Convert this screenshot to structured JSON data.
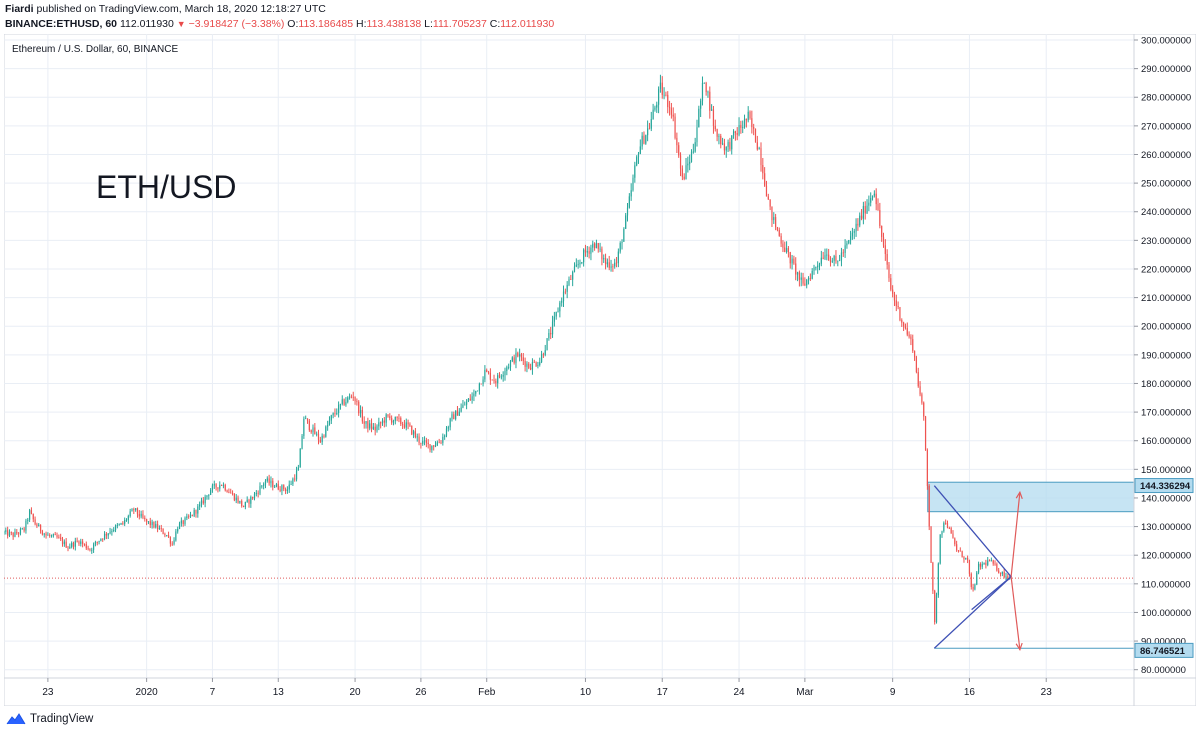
{
  "header": {
    "author": "Fiardi",
    "published_text": "published on TradingView.com, March 18, 2020 12:18:27 UTC",
    "symbol_line": "BINANCE:ETHUSD, 60",
    "last_price": "112.011930",
    "change_arrow": "▼",
    "change": "−3.918427 (−3.38%)",
    "open_label": "O:",
    "open_value": "113.186485",
    "high_label": "H:",
    "high_value": "113.438138",
    "low_label": "L:",
    "low_value": "111.705237",
    "close_label": "C:",
    "close_value": "112.011930"
  },
  "footer": {
    "brand": "TradingView",
    "logo_icon": "tradingview-logo-icon"
  },
  "colors": {
    "up": "#26a69a",
    "down": "#ef5350",
    "grid": "#e9eef5",
    "zone_fill": "#b3dbef",
    "zone_stroke": "#4a9bc1",
    "triangle": "#3f51b5",
    "arrow": "#e05a5a",
    "price_line": "#e05a5a"
  },
  "chart_data": {
    "type": "candlestick",
    "legend_text": "Ethereum / U.S. Dollar, 60, BINANCE",
    "annotation_text": "ETH/USD",
    "y_axis": {
      "min": 75,
      "max": 300,
      "ticks": [
        "300.000000",
        "290.000000",
        "280.000000",
        "270.000000",
        "260.000000",
        "250.000000",
        "240.000000",
        "230.000000",
        "220.000000",
        "210.000000",
        "200.000000",
        "190.000000",
        "180.000000",
        "170.000000",
        "160.000000",
        "150.000000",
        "140.000000",
        "130.000000",
        "120.000000",
        "110.000000",
        "100.000000",
        "90.000000",
        "80.000000"
      ],
      "tick_values": [
        300,
        290,
        280,
        270,
        260,
        250,
        240,
        230,
        220,
        210,
        200,
        190,
        180,
        170,
        160,
        150,
        140,
        130,
        120,
        110,
        100,
        90,
        80
      ]
    },
    "x_axis": {
      "labels": [
        "23",
        "2020",
        "7",
        "13",
        "20",
        "26",
        "Feb",
        "10",
        "17",
        "24",
        "Mar",
        "9",
        "16",
        "23"
      ],
      "label_days": [
        -9,
        0,
        6,
        12,
        19,
        25,
        31,
        40,
        47,
        54,
        60,
        68,
        75,
        82
      ],
      "day_range": [
        -13,
        90
      ]
    },
    "price_badges": [
      {
        "label": "144.336294",
        "value": 144.336294,
        "color": "#b3dbef"
      },
      {
        "label": "86.746521",
        "value": 86.746521,
        "color": "#b3dbef"
      }
    ],
    "current_price_line": 112.01193,
    "zone": {
      "day_start": 71.2,
      "day_end": 90,
      "top": 145.5,
      "bottom": 135.2
    },
    "support_line": {
      "day_start": 71.8,
      "day_end": 90,
      "value": 87.5
    },
    "triangle": [
      {
        "day": 71.8,
        "value": 144.3
      },
      {
        "day": 78.8,
        "value": 112.5
      },
      {
        "day": 71.8,
        "value": 87.5
      }
    ],
    "triangle_inner": {
      "from": {
        "day": 75.2,
        "value": 101
      },
      "to": {
        "day": 78.8,
        "value": 112.5
      }
    },
    "arrows": [
      {
        "from": {
          "day": 78.8,
          "value": 112.5
        },
        "to": {
          "day": 79.6,
          "value": 142
        }
      },
      {
        "from": {
          "day": 78.8,
          "value": 112.5
        },
        "to": {
          "day": 79.6,
          "value": 87
        }
      }
    ],
    "price_path": [
      [
        -13,
        128
      ],
      [
        -12,
        127
      ],
      [
        -11,
        129
      ],
      [
        -10.5,
        135
      ],
      [
        -10,
        131
      ],
      [
        -9,
        127
      ],
      [
        -8,
        126
      ],
      [
        -7,
        123
      ],
      [
        -6,
        125
      ],
      [
        -5,
        122
      ],
      [
        -4,
        126
      ],
      [
        -3,
        129
      ],
      [
        -2,
        131
      ],
      [
        -1,
        136
      ],
      [
        0,
        132
      ],
      [
        1,
        130
      ],
      [
        2,
        127
      ],
      [
        2.5,
        124
      ],
      [
        3,
        130
      ],
      [
        4,
        133
      ],
      [
        5,
        137
      ],
      [
        6,
        143
      ],
      [
        7,
        145
      ],
      [
        8,
        141
      ],
      [
        9,
        137
      ],
      [
        10,
        141
      ],
      [
        11,
        146
      ],
      [
        12,
        144
      ],
      [
        13,
        143
      ],
      [
        14,
        150
      ],
      [
        14.5,
        168
      ],
      [
        15,
        165
      ],
      [
        16,
        160
      ],
      [
        17,
        168
      ],
      [
        18,
        173
      ],
      [
        19,
        176
      ],
      [
        20,
        166
      ],
      [
        21,
        164
      ],
      [
        22,
        168
      ],
      [
        23,
        167
      ],
      [
        24,
        165
      ],
      [
        25,
        160
      ],
      [
        26,
        158
      ],
      [
        27,
        160
      ],
      [
        28,
        168
      ],
      [
        29,
        172
      ],
      [
        30,
        176
      ],
      [
        31,
        184
      ],
      [
        32,
        181
      ],
      [
        33,
        186
      ],
      [
        34,
        190
      ],
      [
        35,
        186
      ],
      [
        36,
        188
      ],
      [
        37,
        198
      ],
      [
        38,
        210
      ],
      [
        39,
        218
      ],
      [
        40,
        225
      ],
      [
        41,
        229
      ],
      [
        42,
        222
      ],
      [
        43,
        222
      ],
      [
        44,
        240
      ],
      [
        45,
        262
      ],
      [
        46,
        270
      ],
      [
        47,
        283
      ],
      [
        48,
        276
      ],
      [
        49,
        251
      ],
      [
        50,
        262
      ],
      [
        51,
        287
      ],
      [
        52,
        268
      ],
      [
        53,
        262
      ],
      [
        54,
        268
      ],
      [
        55,
        273
      ],
      [
        56,
        262
      ],
      [
        57,
        240
      ],
      [
        58,
        230
      ],
      [
        59,
        222
      ],
      [
        60,
        214
      ],
      [
        61,
        220
      ],
      [
        62,
        226
      ],
      [
        63,
        222
      ],
      [
        64,
        228
      ],
      [
        65,
        236
      ],
      [
        66,
        244
      ],
      [
        66.5,
        248
      ],
      [
        67,
        235
      ],
      [
        68,
        213
      ],
      [
        69,
        202
      ],
      [
        70,
        193
      ],
      [
        70.5,
        180
      ],
      [
        71,
        168
      ],
      [
        71.3,
        148
      ],
      [
        71.6,
        122
      ],
      [
        72,
        96
      ],
      [
        72.5,
        128
      ],
      [
        73,
        132
      ],
      [
        74,
        122
      ],
      [
        75,
        118
      ],
      [
        75.4,
        106
      ],
      [
        76,
        116
      ],
      [
        77,
        118
      ],
      [
        78,
        114
      ],
      [
        78.8,
        112
      ]
    ]
  }
}
